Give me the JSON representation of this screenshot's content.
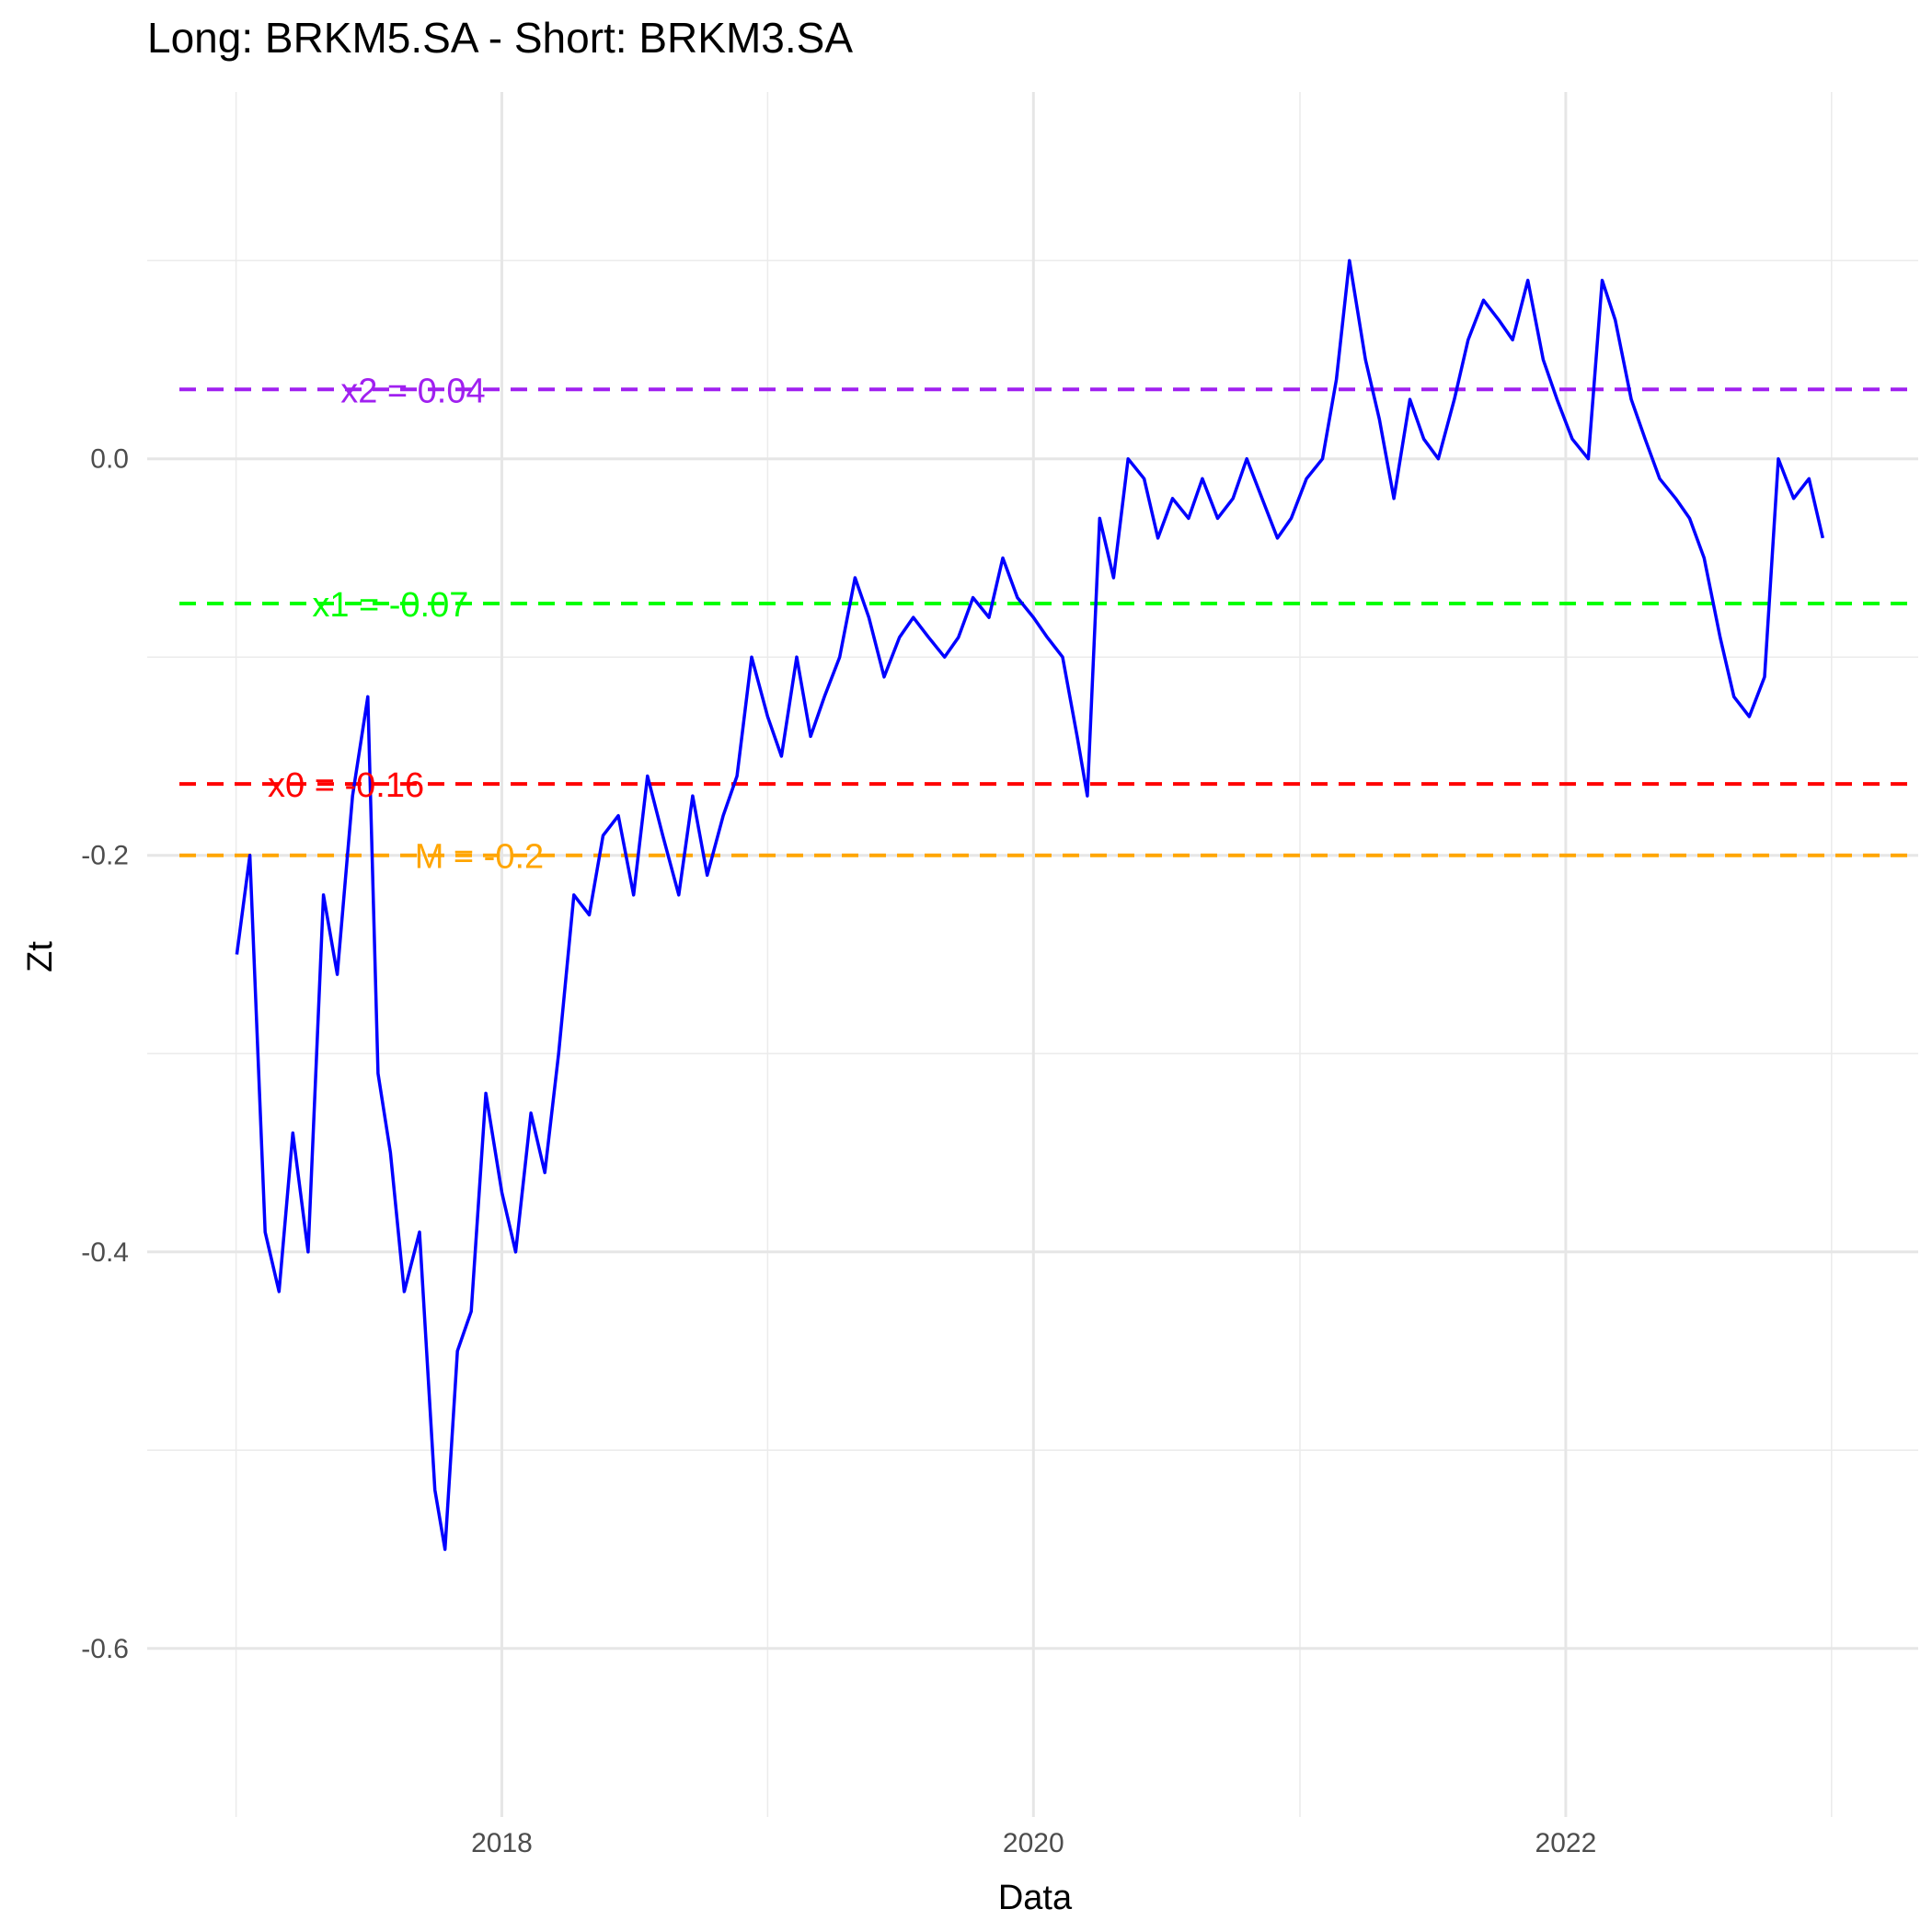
{
  "chart_data": {
    "type": "line",
    "title": "Long: BRKM5.SA - Short: BRKM3.SA",
    "xlabel": "Data",
    "ylabel": "Zt",
    "xlim": [
      "2016-09-01",
      "2023-04-30"
    ],
    "ylim": [
      -0.685,
      0.185
    ],
    "x_ticks": [
      "2018",
      "2020",
      "2022"
    ],
    "y_ticks": [
      "-0.6",
      "-0.4",
      "-0.2",
      "0.0"
    ],
    "grid": true,
    "line_color": "#0000FF",
    "reference_lines": [
      {
        "label": "x2 = 0.04",
        "value": 0.035,
        "color": "#A020F0"
      },
      {
        "label": "x1 = -0.07",
        "value": -0.073,
        "color": "#00FF00"
      },
      {
        "label": "x0 = -0.16",
        "value": -0.164,
        "color": "#FF0000"
      },
      {
        "label": "M = -0.2",
        "value": -0.2,
        "color": "#FFA500"
      }
    ],
    "series": [
      {
        "x": [
          "2017-01-02",
          "2017-01-20",
          "2017-02-10",
          "2017-03-01",
          "2017-03-20",
          "2017-04-10",
          "2017-05-01",
          "2017-05-20",
          "2017-06-10",
          "2017-07-01",
          "2017-07-15",
          "2017-08-01",
          "2017-08-20",
          "2017-09-10",
          "2017-10-01",
          "2017-10-15",
          "2017-11-01",
          "2017-11-20",
          "2017-12-10",
          "2018-01-01",
          "2018-01-20",
          "2018-02-10",
          "2018-03-01",
          "2018-03-20",
          "2018-04-10",
          "2018-05-01",
          "2018-05-20",
          "2018-06-10",
          "2018-07-01",
          "2018-07-20",
          "2018-08-10",
          "2018-09-01",
          "2018-09-20",
          "2018-10-10",
          "2018-11-01",
          "2018-11-20",
          "2018-12-10",
          "2019-01-01",
          "2019-01-20",
          "2019-02-10",
          "2019-03-01",
          "2019-03-20",
          "2019-04-10",
          "2019-05-01",
          "2019-05-20",
          "2019-06-10",
          "2019-07-01",
          "2019-07-20",
          "2019-08-10",
          "2019-09-01",
          "2019-09-20",
          "2019-10-10",
          "2019-11-01",
          "2019-11-20",
          "2019-12-10",
          "2020-01-01",
          "2020-01-20",
          "2020-02-10",
          "2020-03-01",
          "2020-03-15",
          "2020-04-01",
          "2020-04-20",
          "2020-05-10",
          "2020-06-01",
          "2020-06-20",
          "2020-07-10",
          "2020-08-01",
          "2020-08-20",
          "2020-09-10",
          "2020-10-01",
          "2020-10-20",
          "2020-11-10",
          "2020-12-01",
          "2020-12-20",
          "2021-01-10",
          "2021-02-01",
          "2021-02-20",
          "2021-03-10",
          "2021-04-01",
          "2021-04-20",
          "2021-05-10",
          "2021-06-01",
          "2021-06-20",
          "2021-07-10",
          "2021-08-01",
          "2021-08-20",
          "2021-09-10",
          "2021-10-01",
          "2021-10-20",
          "2021-11-10",
          "2021-12-01",
          "2021-12-20",
          "2022-01-10",
          "2022-02-01",
          "2022-02-20",
          "2022-03-10",
          "2022-04-01",
          "2022-04-20",
          "2022-05-10",
          "2022-06-01",
          "2022-06-20",
          "2022-07-10",
          "2022-08-01",
          "2022-08-20",
          "2022-09-10",
          "2022-10-01",
          "2022-10-20",
          "2022-11-10",
          "2022-12-01",
          "2022-12-20"
        ],
        "values": [
          -0.25,
          -0.2,
          -0.39,
          -0.42,
          -0.34,
          -0.4,
          -0.22,
          -0.26,
          -0.17,
          -0.12,
          -0.31,
          -0.35,
          -0.42,
          -0.39,
          -0.52,
          -0.55,
          -0.45,
          -0.43,
          -0.32,
          -0.37,
          -0.4,
          -0.33,
          -0.36,
          -0.3,
          -0.22,
          -0.23,
          -0.19,
          -0.18,
          -0.22,
          -0.16,
          -0.19,
          -0.22,
          -0.17,
          -0.21,
          -0.18,
          -0.16,
          -0.1,
          -0.13,
          -0.15,
          -0.1,
          -0.14,
          -0.12,
          -0.1,
          -0.06,
          -0.08,
          -0.11,
          -0.09,
          -0.08,
          -0.09,
          -0.1,
          -0.09,
          -0.07,
          -0.08,
          -0.05,
          -0.07,
          -0.08,
          -0.09,
          -0.1,
          -0.14,
          -0.17,
          -0.03,
          -0.06,
          0.0,
          -0.01,
          -0.04,
          -0.02,
          -0.03,
          -0.01,
          -0.03,
          -0.02,
          0.0,
          -0.02,
          -0.04,
          -0.03,
          -0.01,
          0.0,
          0.04,
          0.1,
          0.05,
          0.02,
          -0.02,
          0.03,
          0.01,
          0.0,
          0.03,
          0.06,
          0.08,
          0.07,
          0.06,
          0.09,
          0.05,
          0.03,
          0.01,
          0.0,
          0.09,
          0.07,
          0.03,
          0.01,
          -0.01,
          -0.02,
          -0.03,
          -0.05,
          -0.09,
          -0.12,
          -0.13,
          -0.11,
          0.0,
          -0.02,
          -0.01,
          -0.04
        ]
      }
    ]
  }
}
